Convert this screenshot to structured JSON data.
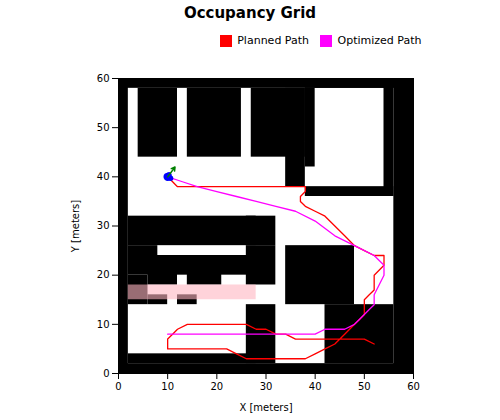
{
  "chart_data": {
    "type": "map",
    "title": "Occupancy Grid",
    "xlabel": "X [meters]",
    "ylabel": "Y [meters]",
    "xlim": [
      0,
      60
    ],
    "ylim": [
      0,
      60
    ],
    "xticks": [
      0,
      10,
      20,
      30,
      40,
      50,
      60
    ],
    "yticks": [
      0,
      10,
      20,
      30,
      40,
      50,
      60
    ],
    "grid": false,
    "legend": "upper right",
    "obstacles": {
      "color": "black",
      "rects": [
        [
          0,
          58,
          60,
          60
        ],
        [
          0,
          0,
          60,
          2
        ],
        [
          0,
          0,
          2,
          60
        ],
        [
          56,
          0,
          60,
          60
        ],
        [
          4,
          44,
          12,
          58
        ],
        [
          14,
          44,
          25,
          58
        ],
        [
          27,
          44,
          38,
          58
        ],
        [
          30,
          47,
          34,
          51
        ],
        [
          34,
          47,
          38,
          58
        ],
        [
          34,
          38,
          38,
          47
        ],
        [
          38,
          58,
          56,
          60
        ],
        [
          38,
          36,
          56,
          38
        ],
        [
          54,
          36,
          56,
          60
        ],
        [
          38,
          42,
          40,
          58
        ],
        [
          2,
          26,
          28,
          32
        ],
        [
          2,
          24,
          8,
          26
        ],
        [
          2,
          20,
          28,
          24
        ],
        [
          2,
          14,
          6,
          20
        ],
        [
          6,
          14,
          10,
          16
        ],
        [
          12,
          14,
          16,
          16
        ],
        [
          2,
          2,
          28,
          4
        ],
        [
          6,
          18,
          12,
          22
        ],
        [
          14,
          18,
          21,
          22
        ],
        [
          26,
          26,
          32,
          32
        ],
        [
          26,
          18,
          32,
          26
        ],
        [
          26,
          2,
          32,
          14
        ],
        [
          34,
          14,
          48,
          26
        ],
        [
          42,
          2,
          56,
          14
        ]
      ]
    },
    "pink_region": {
      "color": "#ffb6c1",
      "rect": [
        2,
        15,
        28,
        18
      ]
    },
    "series": [
      {
        "name": "Planned Path",
        "color": "red",
        "type": "line",
        "x": [
          10,
          11,
          12,
          14,
          16,
          18,
          20,
          22,
          24,
          26,
          27,
          28,
          30,
          32,
          34,
          36,
          38,
          38,
          37,
          37,
          38,
          40,
          42,
          44,
          46,
          48,
          50,
          52,
          53,
          54,
          54,
          54,
          53,
          52,
          52,
          52,
          52,
          51,
          50,
          50,
          50,
          50,
          49,
          48,
          47,
          46,
          44,
          42,
          40,
          38,
          36,
          34,
          32,
          30,
          28,
          26,
          24,
          22,
          20,
          18,
          16,
          14,
          13,
          12,
          11,
          10,
          10,
          10,
          11,
          12,
          14,
          16,
          18,
          20,
          22,
          24,
          26,
          28,
          30,
          32,
          34,
          36,
          38,
          40,
          42,
          44,
          46,
          48,
          50,
          52
        ],
        "y": [
          40,
          39,
          38,
          38,
          38,
          38,
          38,
          38,
          38,
          38,
          38,
          38,
          38,
          38,
          38,
          38,
          38,
          37,
          36,
          35,
          34,
          33,
          32,
          30,
          28,
          26,
          25,
          24,
          24,
          24,
          23,
          22,
          21,
          20,
          19,
          18,
          17,
          16,
          15,
          14,
          13,
          12,
          11,
          10,
          9,
          8,
          6,
          5,
          4,
          3,
          3,
          3,
          3,
          3,
          3,
          3,
          4,
          5,
          5,
          5,
          5,
          5,
          5,
          5,
          5,
          5,
          6,
          7,
          8,
          9,
          10,
          10,
          10,
          10,
          10,
          10,
          10,
          9,
          9,
          8,
          8,
          7,
          7,
          7,
          7,
          7,
          7,
          7,
          7,
          6
        ]
      },
      {
        "name": "Optimized Path",
        "color": "magenta",
        "type": "line",
        "x": [
          10,
          13,
          16,
          20,
          24,
          28,
          32,
          36,
          40,
          44,
          48,
          52,
          54,
          54,
          53,
          52,
          52,
          51,
          50,
          49,
          48,
          46,
          44,
          42,
          40,
          38,
          35,
          32,
          28,
          24,
          20,
          16,
          13,
          11,
          10
        ],
        "y": [
          40,
          39,
          38,
          37,
          36,
          35,
          34,
          33,
          31,
          28,
          26,
          24,
          22,
          20,
          18,
          16,
          14,
          13,
          12,
          11,
          10,
          9,
          9,
          9,
          8,
          8,
          8,
          8,
          8,
          8,
          8,
          8,
          8,
          8,
          8
        ]
      }
    ],
    "robot": {
      "color": "blue",
      "x": [
        10,
        10.6,
        10.3
      ],
      "y": [
        40,
        39.7,
        40.5
      ]
    },
    "arrow": {
      "color": "green",
      "x1": 10,
      "y1": 40,
      "x2": 11.5,
      "y2": 42
    }
  }
}
